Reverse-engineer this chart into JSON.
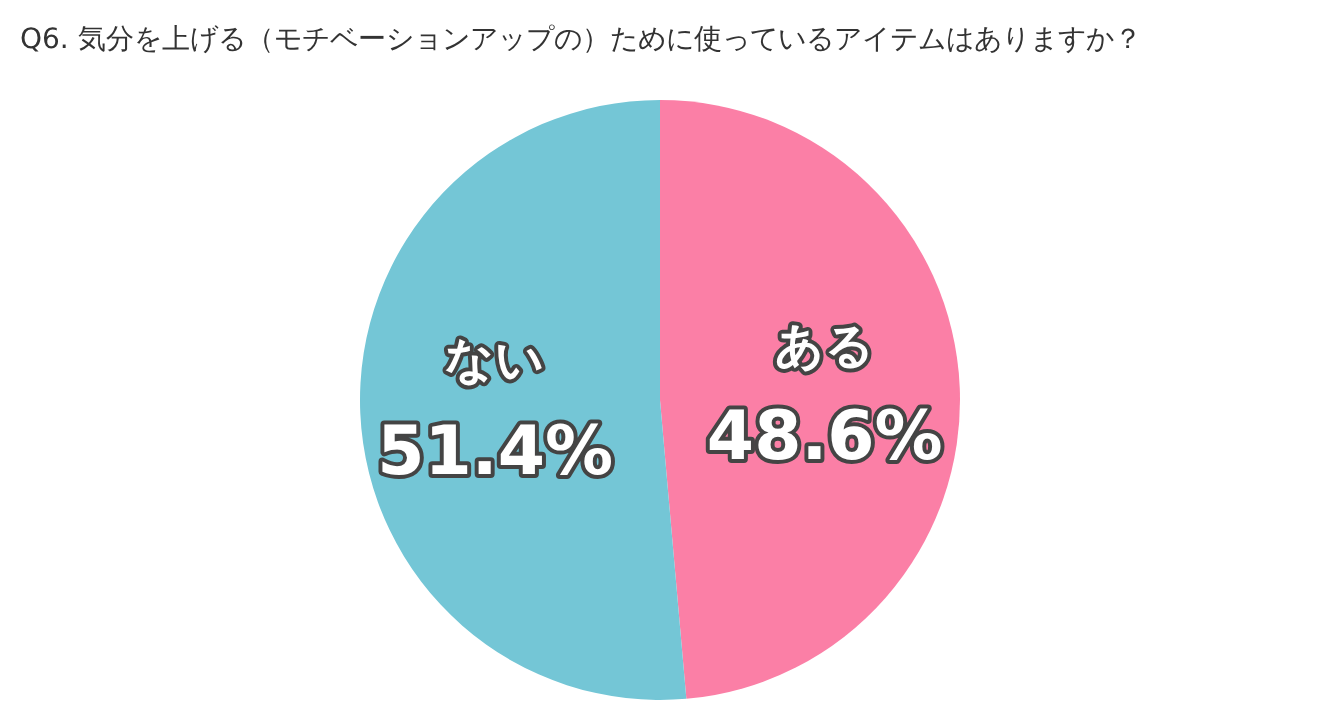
{
  "chart_data": {
    "type": "pie",
    "title": "Q6. 気分を上げる（モチベーションアップの）ために使っているアイテムはありますか？",
    "categories": [
      "ある",
      "ない"
    ],
    "values": [
      48.6,
      51.4
    ],
    "value_labels": [
      "48.6%",
      "51.4%"
    ],
    "colors": [
      "#fb7fa6",
      "#74c6d6"
    ]
  }
}
